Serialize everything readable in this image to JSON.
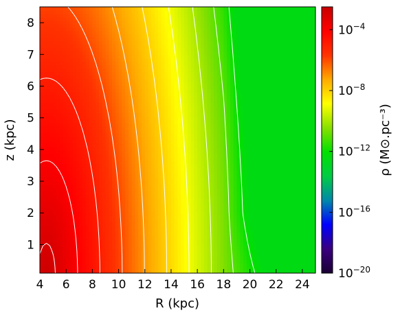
{
  "chart_data": {
    "type": "heatmap",
    "title": "",
    "xlabel": "R (kpc)",
    "ylabel": "z (kpc)",
    "xlim": [
      4,
      25
    ],
    "ylim": [
      0.1,
      8.5
    ],
    "x_ticks": [
      4,
      6,
      8,
      10,
      12,
      14,
      16,
      18,
      20,
      22,
      24
    ],
    "y_ticks": [
      1,
      2,
      3,
      4,
      5,
      6,
      7,
      8
    ],
    "colorbar": {
      "label": "ρ (M⊙.pc⁻³)",
      "scale": "log",
      "range_log10": [
        -20,
        -2.5
      ],
      "ticks": [
        {
          "value": 0.0001,
          "base": "10",
          "exp": "−4"
        },
        {
          "value": 1e-08,
          "base": "10",
          "exp": "−8"
        },
        {
          "value": 1e-12,
          "base": "10",
          "exp": "−12"
        },
        {
          "value": 1e-16,
          "base": "10",
          "exp": "−16"
        },
        {
          "value": 1e-20,
          "base": "10",
          "exp": "−20"
        }
      ],
      "colormap": [
        "#1a0033",
        "#3a0080",
        "#0000ff",
        "#0088aa",
        "#00cc44",
        "#00e000",
        "#88e000",
        "#ffff00",
        "#ffaa00",
        "#ff3300",
        "#ff0000",
        "#c80000"
      ]
    },
    "density_model_log10": {
      "description": "log10(rho) over (R, z)",
      "center": -2.6,
      "radial_drop_per_kpc": 0.55,
      "vertical_drop_per_kpc": 0.9,
      "warp_center_R": 19,
      "outer_floor": -12.5
    },
    "contour_levels_log10": [
      -3,
      -4,
      -5,
      -6,
      -7,
      -8,
      -9,
      -10,
      -11,
      -12,
      -13
    ],
    "contour_color": "#ffffff",
    "grid": false,
    "legend": "none"
  }
}
